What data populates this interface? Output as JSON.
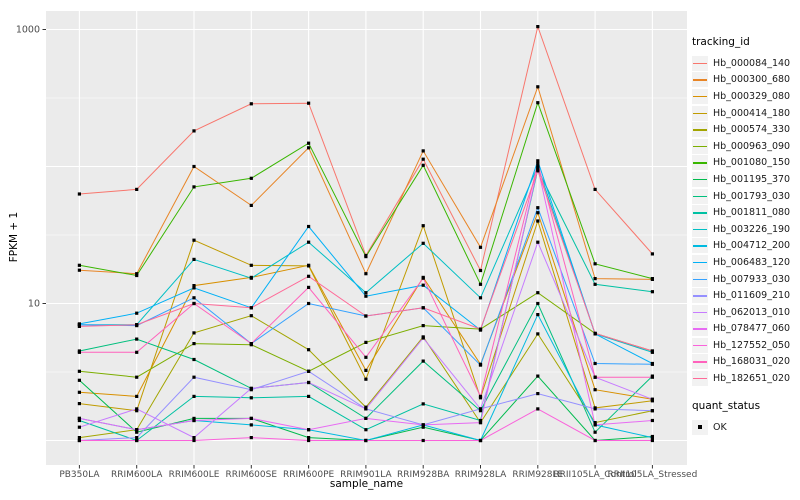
{
  "chart_data": {
    "type": "line",
    "xlabel": "sample_name",
    "ylabel": "FPKM + 1",
    "y_scale": "log10",
    "ylim": [
      0.66,
      1340
    ],
    "grid": "on",
    "legend_position": "right",
    "panel_bg": "#EBEBEB",
    "grid_color": "#FFFFFF",
    "tick_label_color": "#4D4D4D",
    "point_color": "#000000",
    "y_ticks": [
      {
        "label": "1000",
        "value": 1000
      },
      {
        "label": "10",
        "value": 10
      }
    ],
    "y_major_gridlines": [
      1,
      10,
      100,
      1000
    ],
    "y_minor_gridlines": [
      3.162,
      31.62,
      316.2
    ],
    "categories": [
      "PB350LA",
      "RRIM600LA",
      "RRIM600LE",
      "RRIM600SE",
      "RRIM600PE",
      "RRIM901LA",
      "RRIM928BA",
      "RRIM928LA",
      "RRIM928LE",
      "RRII105LA_Control",
      "RRII105LA_Stressed"
    ],
    "series": [
      {
        "name": "Hb_000084_140",
        "color": "#F8766D",
        "values": [
          63,
          68,
          182,
          287,
          290,
          22.4,
          113,
          17.4,
          1050,
          68,
          23
        ]
      },
      {
        "name": "Hb_000300_680",
        "color": "#E88526",
        "values": [
          17.5,
          16.5,
          100,
          52,
          137,
          16.5,
          130,
          25.7,
          382,
          15.2,
          15
        ]
      },
      {
        "name": "Hb_000329_080",
        "color": "#D89000",
        "values": [
          2.25,
          2.1,
          13.5,
          15.5,
          19,
          3.25,
          15.5,
          3.6,
          46,
          2.35,
          2.0
        ]
      },
      {
        "name": "Hb_000414_180",
        "color": "#C09B00",
        "values": [
          1.86,
          1.65,
          29,
          19,
          18.8,
          2.8,
          37,
          2.05,
          40,
          1.73,
          1.95
        ]
      },
      {
        "name": "Hb_000574_330",
        "color": "#A3A500",
        "values": [
          1.05,
          1.2,
          6.1,
          8.15,
          4.6,
          1.75,
          5.7,
          1.35,
          6.0,
          1.35,
          1.65
        ]
      },
      {
        "name": "Hb_000963_090",
        "color": "#7CAE00",
        "values": [
          3.2,
          2.9,
          5.1,
          5.0,
          3.2,
          5.2,
          6.9,
          6.5,
          12,
          6.05,
          4.5
        ]
      },
      {
        "name": "Hb_001080_150",
        "color": "#39B600",
        "values": [
          19,
          16,
          71,
          82,
          148,
          22,
          102,
          13.8,
          292,
          19.5,
          15.2
        ]
      },
      {
        "name": "Hb_001195_370",
        "color": "#00BB4E",
        "values": [
          2.75,
          1.15,
          1.45,
          1.45,
          1.05,
          1.0,
          1.25,
          1.0,
          2.95,
          1.0,
          1.07
        ]
      },
      {
        "name": "Hb_001793_030",
        "color": "#00BF7D",
        "values": [
          4.5,
          5.5,
          3.9,
          2.4,
          2.65,
          1.45,
          3.8,
          1.65,
          10,
          1.15,
          2.95
        ]
      },
      {
        "name": "Hb_001811_080",
        "color": "#00C1A3",
        "values": [
          1.4,
          1.0,
          2.1,
          2.05,
          2.1,
          1.2,
          1.85,
          1.4,
          95,
          13.8,
          12.2
        ]
      },
      {
        "name": "Hb_003226_190",
        "color": "#00BFC4",
        "values": [
          7.0,
          7.0,
          21,
          15.3,
          28,
          12,
          27.5,
          11,
          100,
          6.0,
          4.4
        ]
      },
      {
        "name": "Hb_004712_200",
        "color": "#00BAE0",
        "values": [
          1.45,
          1.2,
          1.4,
          1.3,
          1.2,
          1.0,
          1.3,
          1.0,
          8.3,
          1.3,
          1.05
        ]
      },
      {
        "name": "Hb_006483_120",
        "color": "#00B0F6",
        "values": [
          7.1,
          8.5,
          13,
          9.3,
          36.5,
          11.3,
          13.6,
          6.4,
          110,
          6.0,
          3.65
        ]
      },
      {
        "name": "Hb_007933_030",
        "color": "#35A2FF",
        "values": [
          7.0,
          6.9,
          11,
          5.1,
          10,
          8.1,
          9.3,
          3.55,
          50,
          3.65,
          3.6
        ]
      },
      {
        "name": "Hb_011609_210",
        "color": "#9590FF",
        "values": [
          1.0,
          1.05,
          2.9,
          2.35,
          3.2,
          1.7,
          1.3,
          1.7,
          2.2,
          1.7,
          1.65
        ]
      },
      {
        "name": "Hb_062013_010",
        "color": "#C77CFF",
        "values": [
          1.25,
          1.7,
          1.05,
          2.4,
          2.65,
          1.7,
          5.6,
          1.7,
          28,
          2.9,
          2.0
        ]
      },
      {
        "name": "Hb_078477_060",
        "color": "#E76BF3",
        "values": [
          1.45,
          1.2,
          1.4,
          1.45,
          1.2,
          1.45,
          1.3,
          1.35,
          98,
          1.3,
          1.4
        ]
      },
      {
        "name": "Hb_127552_050",
        "color": "#FA62DB",
        "values": [
          1.0,
          1.0,
          1.0,
          1.05,
          1.0,
          1.0,
          1.0,
          1.0,
          1.7,
          1.0,
          1.0
        ]
      },
      {
        "name": "Hb_168031_020",
        "color": "#FF62BC",
        "values": [
          4.4,
          4.4,
          10,
          5.1,
          13.1,
          4.05,
          15.3,
          2.1,
          105,
          2.9,
          2.9
        ]
      },
      {
        "name": "Hb_182651_020",
        "color": "#FF6A98",
        "values": [
          6.8,
          7.0,
          10,
          9.3,
          15.8,
          8.1,
          9.3,
          6.5,
          93,
          6.05,
          4.5
        ]
      }
    ],
    "legend": {
      "color_title": "tracking_id",
      "shape_title": "quant_status",
      "shape_entries": [
        {
          "label": "OK"
        }
      ]
    }
  }
}
